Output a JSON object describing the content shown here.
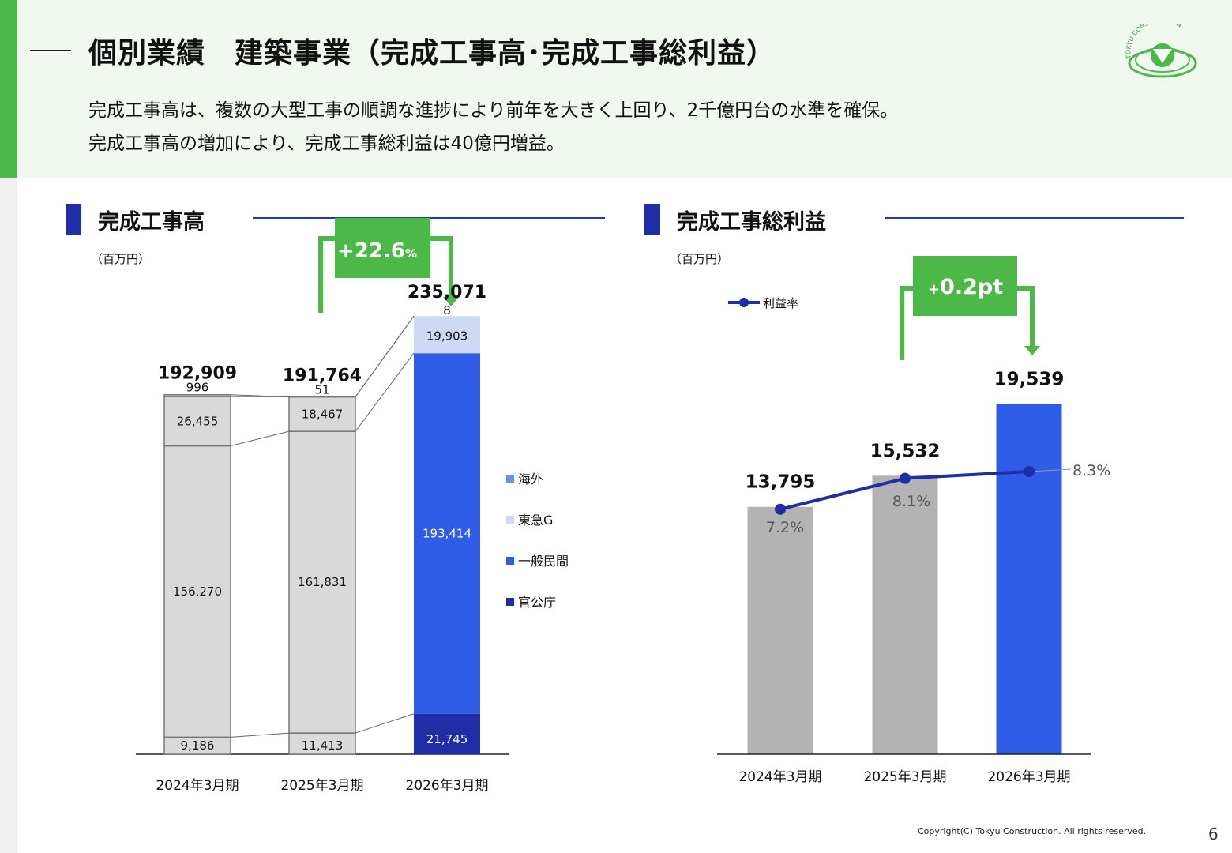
{
  "header": {
    "title": "個別業績　建築事業（完成工事高･完成工事総利益）",
    "summary_line1": "完成工事高は、複数の大型工事の順調な進捗により前年を大きく上回り、2千億円台の水準を確保。",
    "summary_line2": "完成工事高の増加により、完成工事総利益は40億円増益。"
  },
  "logo": {
    "text": "TOKYU CONSTRUCTION"
  },
  "footer": {
    "copyright": "Copyright(C) Tokyu Construction. All rights reserved.",
    "page_number": "6"
  },
  "colors": {
    "accent_green": "#4cb848",
    "navy": "#1f2da6",
    "blue": "#2e5ce6",
    "light_blue": "#cdd9f5",
    "mid_blue": "#6b8fe6",
    "prior_gray": "#d9d9d9",
    "bar_gray": "#b3b3b3"
  },
  "chart_data": [
    {
      "type": "bar",
      "stacked": true,
      "title": "完成工事高",
      "unit": "（百万円）",
      "categories": [
        "2024年3月期",
        "2025年3月期",
        "2026年3月期"
      ],
      "series": [
        {
          "name": "官公庁",
          "values": [
            9186,
            11413,
            21745
          ],
          "labels": [
            "9,186",
            "11,413",
            "21,745"
          ]
        },
        {
          "name": "一般民間",
          "values": [
            156270,
            161831,
            193414
          ],
          "labels": [
            "156,270",
            "161,831",
            "193,414"
          ]
        },
        {
          "name": "東急G",
          "values": [
            26455,
            18467,
            19903
          ],
          "labels": [
            "26,455",
            "18,467",
            "19,903"
          ]
        },
        {
          "name": "海外",
          "values": [
            996,
            51,
            8
          ],
          "labels": [
            "996",
            "51",
            "8"
          ]
        }
      ],
      "totals": [
        "192,909",
        "191,764",
        "235,071"
      ],
      "legend_order": [
        "海外",
        "東急G",
        "一般民間",
        "官公庁"
      ],
      "legend_position": "right",
      "ylim": [
        0,
        250000
      ],
      "callout": {
        "main": "+22.6",
        "unit": "%"
      }
    },
    {
      "type": "bar",
      "title": "完成工事総利益",
      "unit": "（百万円）",
      "categories": [
        "2024年3月期",
        "2025年3月期",
        "2026年3月期"
      ],
      "values": [
        13795,
        15532,
        19539
      ],
      "labels": [
        "13,795",
        "15,532",
        "19,539"
      ],
      "ylim": [
        0,
        24000
      ],
      "line": {
        "name": "利益率",
        "values": [
          7.2,
          8.1,
          8.3
        ],
        "labels": [
          "7.2%",
          "8.1%",
          "8.3%"
        ],
        "ylim": [
          0,
          10.5
        ]
      },
      "legend_position": "top-left",
      "callout": {
        "main": "0.2pt",
        "prefix": "+"
      }
    }
  ]
}
